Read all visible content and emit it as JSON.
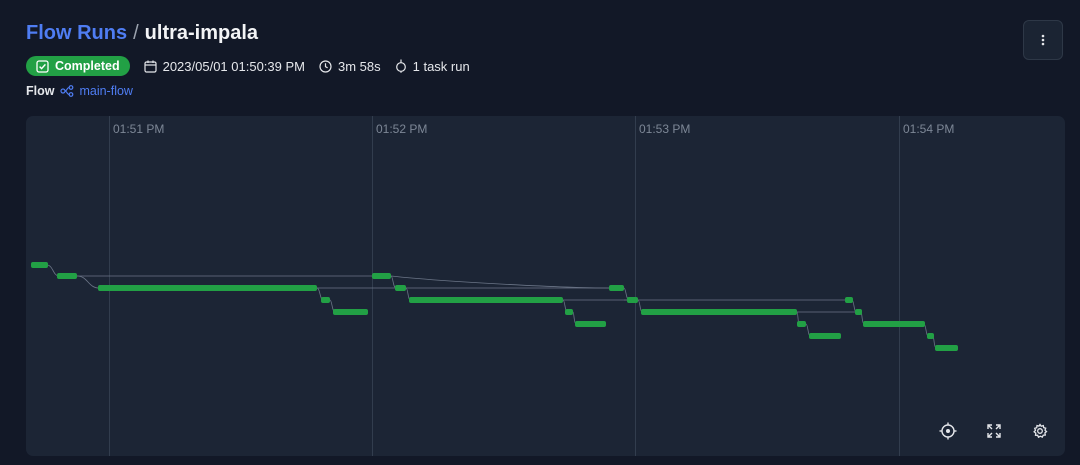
{
  "breadcrumb": {
    "parent": "Flow Runs",
    "separator": "/",
    "current": "ultra-impala"
  },
  "status": {
    "label": "Completed",
    "color": "#22a045"
  },
  "meta": {
    "start_time": "2023/05/01 01:50:39 PM",
    "duration": "3m 58s",
    "task_runs": "1 task run"
  },
  "flow": {
    "label": "Flow",
    "name": "main-flow"
  },
  "timeline": {
    "ticks": [
      "01:51 PM",
      "01:52 PM",
      "01:53 PM",
      "01:54 PM"
    ],
    "bar_color": "#22a045",
    "controls": [
      "recenter-icon",
      "fullscreen-icon",
      "settings-icon"
    ]
  }
}
